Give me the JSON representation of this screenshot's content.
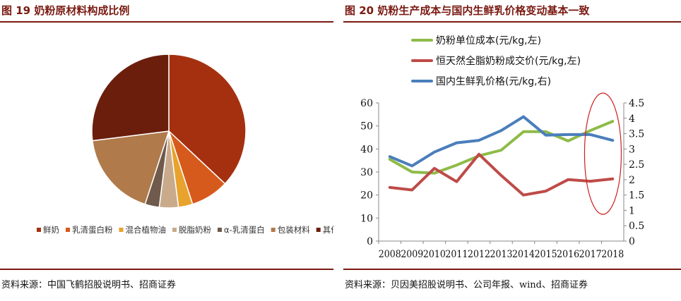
{
  "left": {
    "title": "图 19  奶粉原材料构成比例",
    "source": "资料来源：中国飞鹤招股说明书、招商证券"
  },
  "right": {
    "title": "图 20  奶粉生产成本与国内生鲜乳价格变动基本一致",
    "source": "资料来源：贝因美招股说明书、公司年报、wind、招商证券"
  },
  "chart_data": [
    {
      "type": "pie",
      "title": "奶粉原材料构成比例",
      "categories": [
        "鲜奶",
        "乳清蛋白粉",
        "混合植物油",
        "脱脂奶粉",
        "α-乳清蛋白",
        "包装材料",
        "其他"
      ],
      "values": [
        37,
        8,
        3,
        4,
        3,
        18,
        27
      ],
      "colors": [
        "#a5300f",
        "#d65a1c",
        "#e8a22e",
        "#c9ab8c",
        "#6f5a4b",
        "#b07a4b",
        "#6b1e0c"
      ],
      "legend": "bottom"
    },
    {
      "type": "line",
      "title": "奶粉生产成本与国内生鲜乳价格变动基本一致",
      "x": [
        "2008",
        "2009",
        "2010",
        "2011",
        "2012",
        "2013",
        "2014",
        "2015",
        "2016",
        "2017",
        "2018"
      ],
      "series": [
        {
          "name": "奶粉单位成本(元/kg,左)",
          "axis": "left",
          "color": "#8ebb48",
          "values": [
            35.5,
            30,
            29.5,
            33,
            37,
            39.5,
            47.5,
            47.5,
            43.5,
            48,
            52
          ]
        },
        {
          "name": "恒天然全脂奶粉成交价(元/kg,左)",
          "axis": "left",
          "color": "#be4b48",
          "values": [
            23.3,
            22.2,
            31.6,
            25.8,
            37.7,
            28.5,
            20,
            21.7,
            26.7,
            26,
            27
          ]
        },
        {
          "name": "国内生鲜乳价格(元/kg,右)",
          "axis": "right",
          "color": "#4a7ebb",
          "values": [
            2.75,
            2.45,
            2.9,
            3.2,
            3.28,
            3.6,
            4.05,
            3.45,
            3.47,
            3.47,
            3.28
          ]
        }
      ],
      "yleft": {
        "min": 0,
        "max": 60,
        "ticks": [
          "0",
          "10",
          "20",
          "30",
          "40",
          "50",
          "60"
        ]
      },
      "yright": {
        "min": 0,
        "max": 4.5,
        "ticks": [
          "0",
          "0.5",
          "1",
          "1.5",
          "2",
          "2.5",
          "3",
          "3.5",
          "4",
          "4.5"
        ]
      },
      "legend": "top",
      "highlight_color": "#cc1f1f"
    }
  ]
}
